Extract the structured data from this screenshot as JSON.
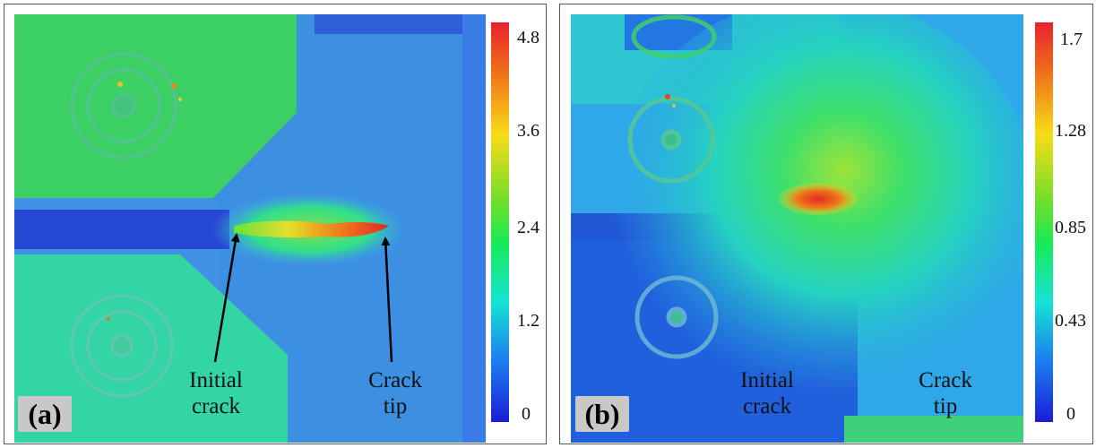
{
  "panels": {
    "a": {
      "label": "(a)",
      "colorbar_ticks": [
        "4.8",
        "3.6",
        "2.4",
        "1.2",
        "0"
      ],
      "annotations": {
        "initial_crack_line1": "Initial",
        "initial_crack_line2": "crack",
        "crack_tip_line1": "Crack",
        "crack_tip_line2": "tip"
      }
    },
    "b": {
      "label": "(b)",
      "colorbar_ticks": [
        "1.7",
        "1.28",
        "0.85",
        "0.43",
        "0"
      ],
      "annotations": {
        "initial_crack_line1": "Initial",
        "initial_crack_line2": "crack",
        "crack_tip_line1": "Crack",
        "crack_tip_line2": "tip"
      }
    }
  },
  "colormap": [
    "#1a1ed6",
    "#1d7cf0",
    "#16e3d5",
    "#18ea56",
    "#6ede2a",
    "#f7dc17",
    "#f06c1a",
    "#e8222e"
  ]
}
